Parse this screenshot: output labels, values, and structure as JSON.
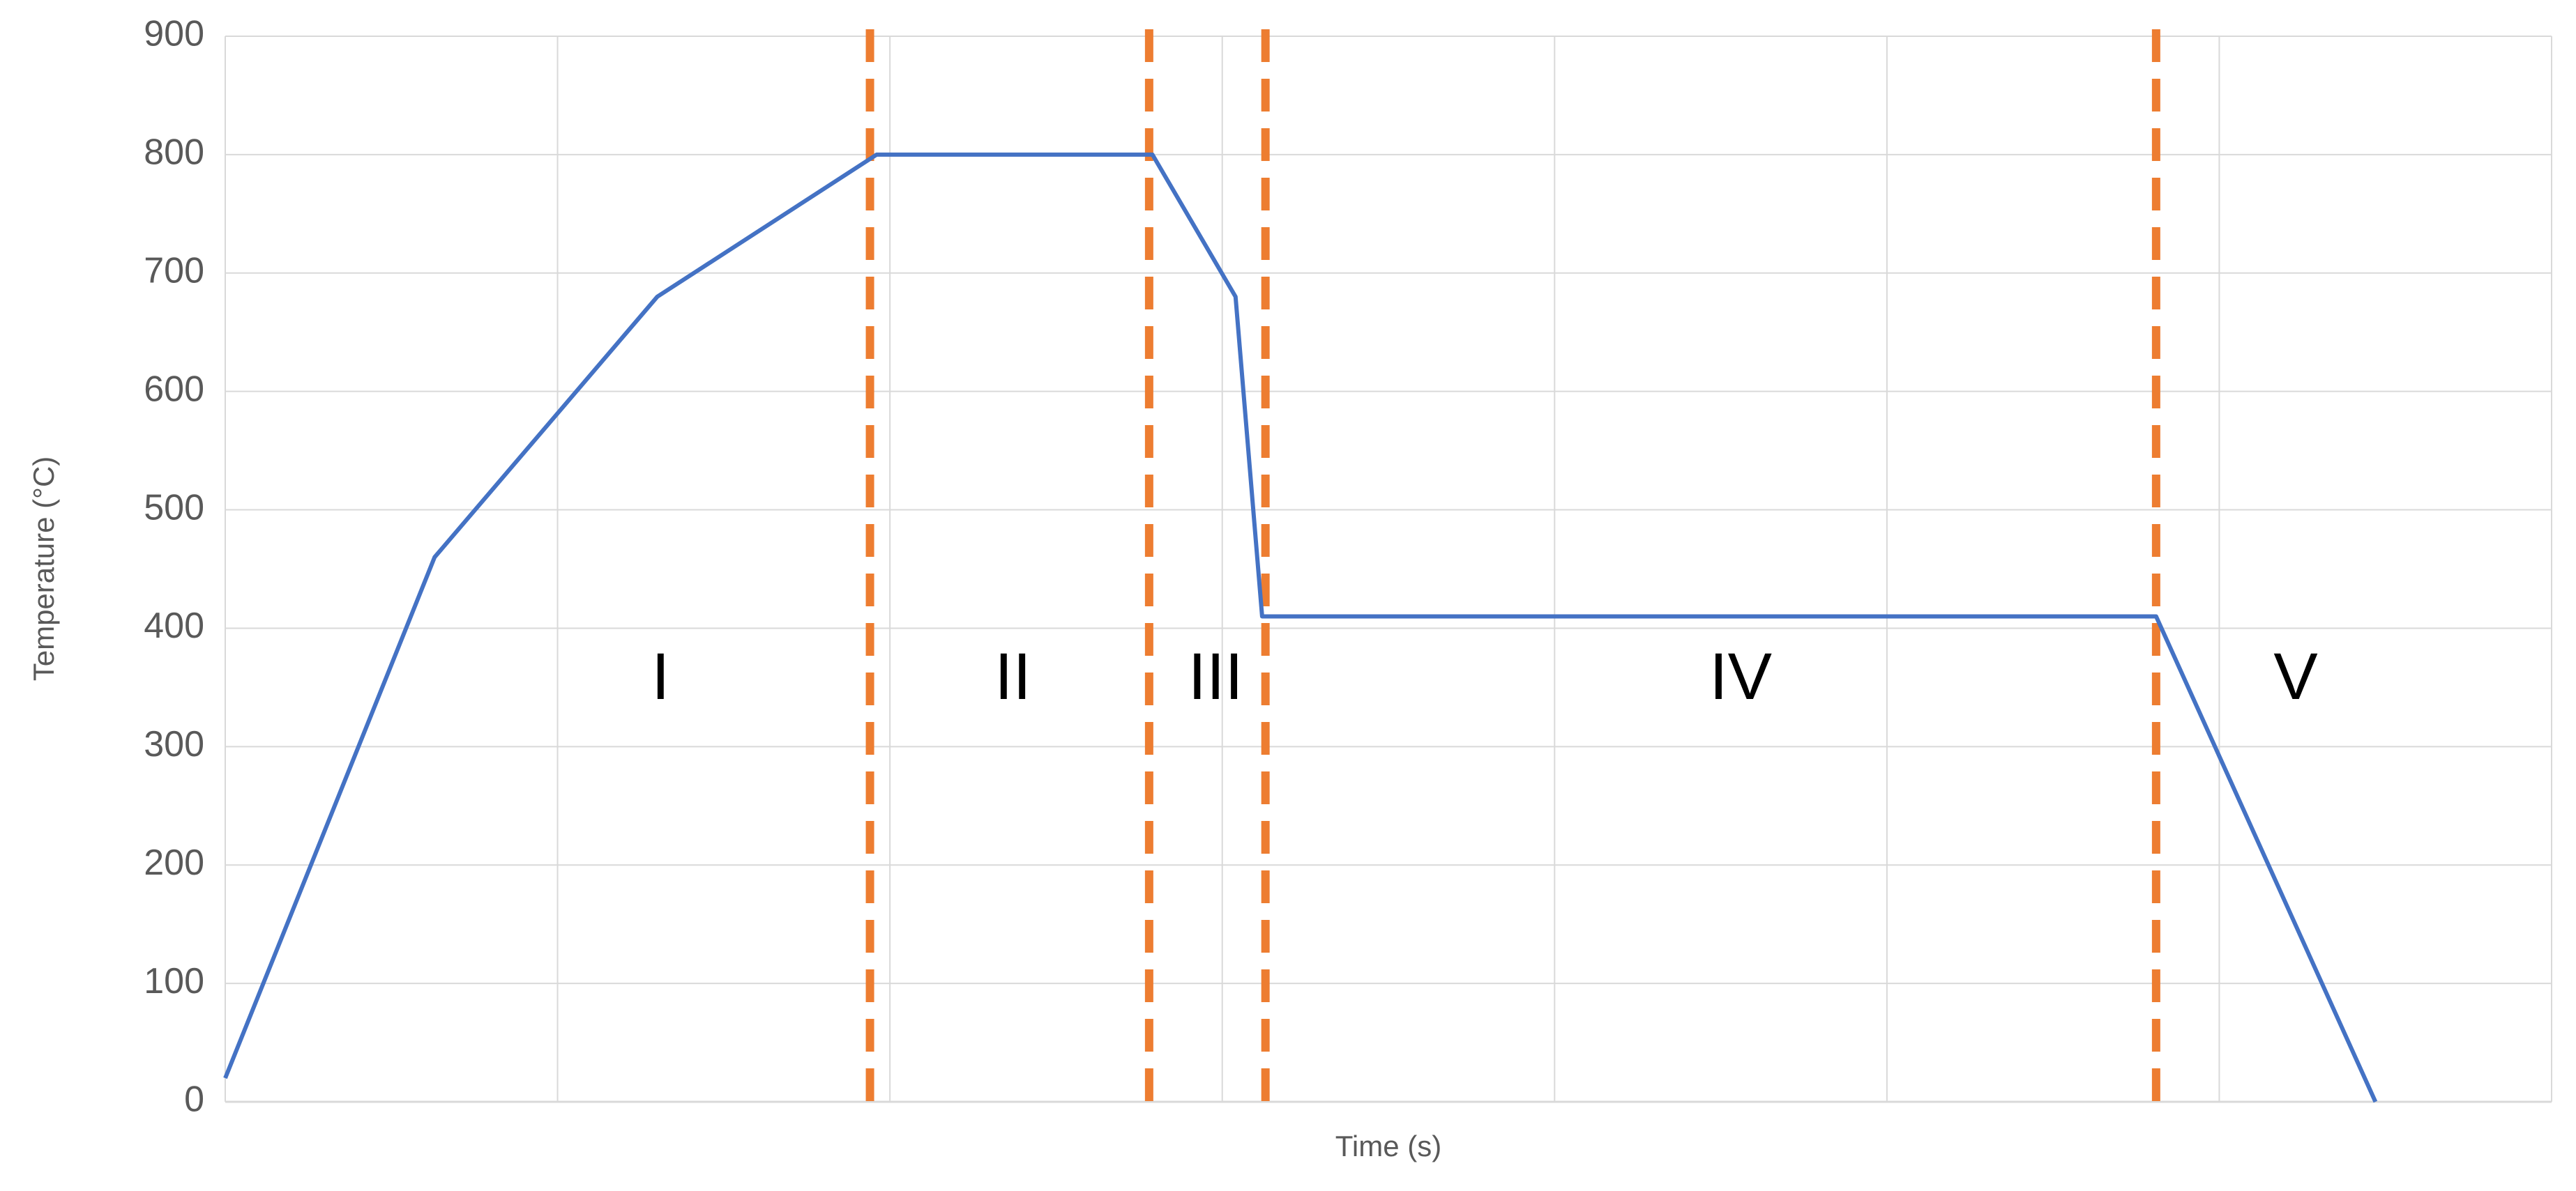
{
  "chart_data": {
    "type": "line",
    "x_label": "Time (s)",
    "y_label": "Temperature (°C)",
    "xlim": [
      0,
      7
    ],
    "xticks": [
      0,
      1,
      2,
      3,
      4,
      5,
      6,
      7
    ],
    "show_xtick_labels": false,
    "ylim": [
      0,
      900
    ],
    "yticks": [
      0,
      100,
      200,
      300,
      400,
      500,
      600,
      700,
      800,
      900
    ],
    "grid": true,
    "series": [
      {
        "color": "#4472c4",
        "x": [
          0,
          0.63,
          1.3,
          1.96,
          2.79,
          3.04,
          3.12,
          5.81,
          6.47
        ],
        "values": [
          20,
          460,
          680,
          800,
          800,
          680,
          410,
          410,
          0
        ]
      }
    ],
    "vlines": {
      "color": "#ed7d31",
      "x": [
        1.94,
        2.78,
        3.13,
        5.81
      ]
    },
    "annotations": [
      {
        "text": "I",
        "x": 1.31,
        "y": 355
      },
      {
        "text": "II",
        "x": 2.37,
        "y": 355
      },
      {
        "text": "III",
        "x": 2.98,
        "y": 355
      },
      {
        "text": "IV",
        "x": 4.56,
        "y": 355
      },
      {
        "text": "V",
        "x": 6.23,
        "y": 355
      }
    ]
  }
}
